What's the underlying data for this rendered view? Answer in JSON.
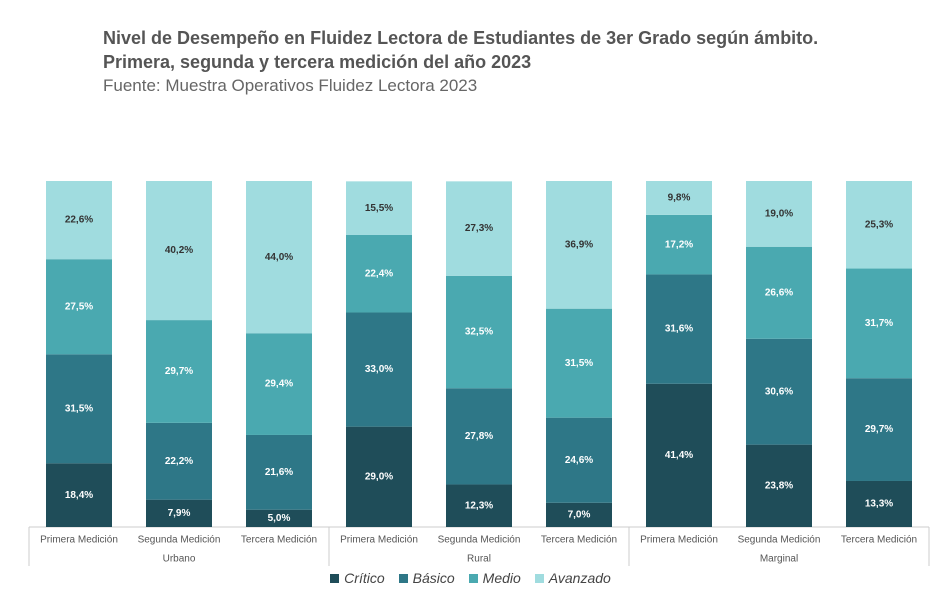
{
  "chart_data": {
    "type": "stacked_bar",
    "title": "Nivel de Desempeño en Fluidez Lectora de Estudiantes de 3er Grado según ámbito. Primera, segunda y tercera medición del año 2023",
    "subtitle": "Fuente: Muestra Operativos Fluidez Lectora 2023",
    "categories": [
      "Primera Medición",
      "Segunda Medición",
      "Tercera Medición",
      "Primera Medición",
      "Segunda Medición",
      "Tercera Medición",
      "Primera Medición",
      "Segunda Medición",
      "Tercera Medición"
    ],
    "groups": [
      {
        "name": "Urbano",
        "size": 3
      },
      {
        "name": "Rural",
        "size": 3
      },
      {
        "name": "Marginal",
        "size": 3
      }
    ],
    "ylim": [
      0,
      100
    ],
    "series": [
      {
        "name": "Crítico",
        "color": "#1f4d59",
        "values": [
          18.4,
          7.9,
          5.0,
          29.0,
          12.3,
          7.0,
          41.4,
          23.8,
          13.3
        ],
        "value_labels": [
          "18,4%",
          "7,9%",
          "5,0%",
          "29,0%",
          "12,3%",
          "7,0%",
          "41,4%",
          "23,8%",
          "13,3%"
        ]
      },
      {
        "name": "Básico",
        "color": "#2e7787",
        "values": [
          31.5,
          22.2,
          21.6,
          33.0,
          27.8,
          24.6,
          31.6,
          30.6,
          29.7
        ],
        "value_labels": [
          "31,5%",
          "22,2%",
          "21,6%",
          "33,0%",
          "27,8%",
          "24,6%",
          "31,6%",
          "30,6%",
          "29,7%"
        ]
      },
      {
        "name": "Medio",
        "color": "#4aa9b0",
        "values": [
          27.5,
          29.7,
          29.4,
          22.4,
          32.5,
          31.5,
          17.2,
          26.6,
          31.7
        ],
        "value_labels": [
          "27,5%",
          "29,7%",
          "29,4%",
          "22,4%",
          "32,5%",
          "31,5%",
          "17,2%",
          "26,6%",
          "31,7%"
        ]
      },
      {
        "name": "Avanzado",
        "color": "#a0dcdf",
        "values": [
          22.6,
          40.2,
          44.0,
          15.5,
          27.3,
          36.9,
          9.8,
          19.0,
          25.3
        ],
        "value_labels": [
          "22,6%",
          "40,2%",
          "44,0%",
          "15,5%",
          "27,3%",
          "36,9%",
          "9,8%",
          "19,0%",
          "25,3%"
        ]
      }
    ]
  }
}
